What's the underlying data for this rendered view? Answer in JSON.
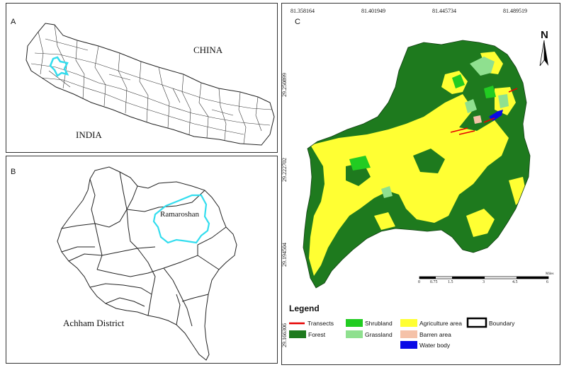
{
  "panel_a": {
    "label": "A",
    "country_north": "CHINA",
    "country_south": "INDIA"
  },
  "panel_b": {
    "label": "B",
    "area_label": "Ramaroshan",
    "district_label": "Achham District"
  },
  "panel_c": {
    "label": "C",
    "north_arrow": "N",
    "top_coords": [
      "81.358164",
      "81.401949",
      "81.445734",
      "81.489519"
    ],
    "left_coords": [
      "29.250899",
      "29.222702",
      "29.194504",
      "29.166306"
    ],
    "scale": {
      "ticks": [
        "0",
        "0.75",
        "1.5",
        "3",
        "4.5",
        "6"
      ],
      "unit": "Miles"
    },
    "legend": {
      "title": "Legend",
      "items": [
        {
          "label": "Transects",
          "color": "#e60000",
          "kind": "line"
        },
        {
          "label": "Shrubland",
          "color": "#22cc22",
          "kind": "fill"
        },
        {
          "label": "Agriculture area",
          "color": "#ffff33",
          "kind": "fill"
        },
        {
          "label": "Boundary",
          "color": "#000000",
          "kind": "outline"
        },
        {
          "label": "Forest",
          "color": "#1e7a1e",
          "kind": "fill"
        },
        {
          "label": "Grassland",
          "color": "#8fe08f",
          "kind": "fill"
        },
        {
          "label": "Barren area",
          "color": "#f5c2a8",
          "kind": "fill"
        },
        {
          "label": "Water body",
          "color": "#0a0ae6",
          "kind": "fill"
        }
      ]
    }
  },
  "colors": {
    "study_area_outline": "#33ddee",
    "forest": "#1e7a1e",
    "agriculture": "#ffff33",
    "shrubland": "#22cc22",
    "grassland": "#8fe08f"
  }
}
